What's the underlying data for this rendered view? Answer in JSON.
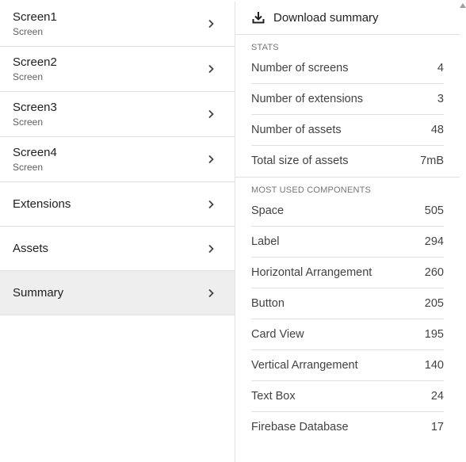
{
  "nav": {
    "items": [
      {
        "title": "Screen1",
        "subtitle": "Screen"
      },
      {
        "title": "Screen2",
        "subtitle": "Screen"
      },
      {
        "title": "Screen3",
        "subtitle": "Screen"
      },
      {
        "title": "Screen4",
        "subtitle": "Screen"
      },
      {
        "title": "Extensions"
      },
      {
        "title": "Assets"
      },
      {
        "title": "Summary"
      }
    ],
    "selected_index": 6,
    "selected_color": "#eeeeee"
  },
  "summary": {
    "download_label": "Download summary",
    "download_icon": "download-icon",
    "stats_header": "STATS",
    "stats": [
      {
        "label": "Number of screens",
        "value": "4"
      },
      {
        "label": "Number of extensions",
        "value": "3"
      },
      {
        "label": "Number of assets",
        "value": "48"
      },
      {
        "label": "Total size of assets",
        "value": "7mB"
      }
    ],
    "components_header": "MOST USED COMPONENTS",
    "components": [
      {
        "label": "Space",
        "value": "505"
      },
      {
        "label": "Label",
        "value": "294"
      },
      {
        "label": "Horizontal Arrangement",
        "value": "260"
      },
      {
        "label": "Button",
        "value": "205"
      },
      {
        "label": "Card View",
        "value": "195"
      },
      {
        "label": "Vertical Arrangement",
        "value": "140"
      },
      {
        "label": "Text Box",
        "value": "24"
      },
      {
        "label": "Firebase Database",
        "value": "17"
      }
    ]
  }
}
